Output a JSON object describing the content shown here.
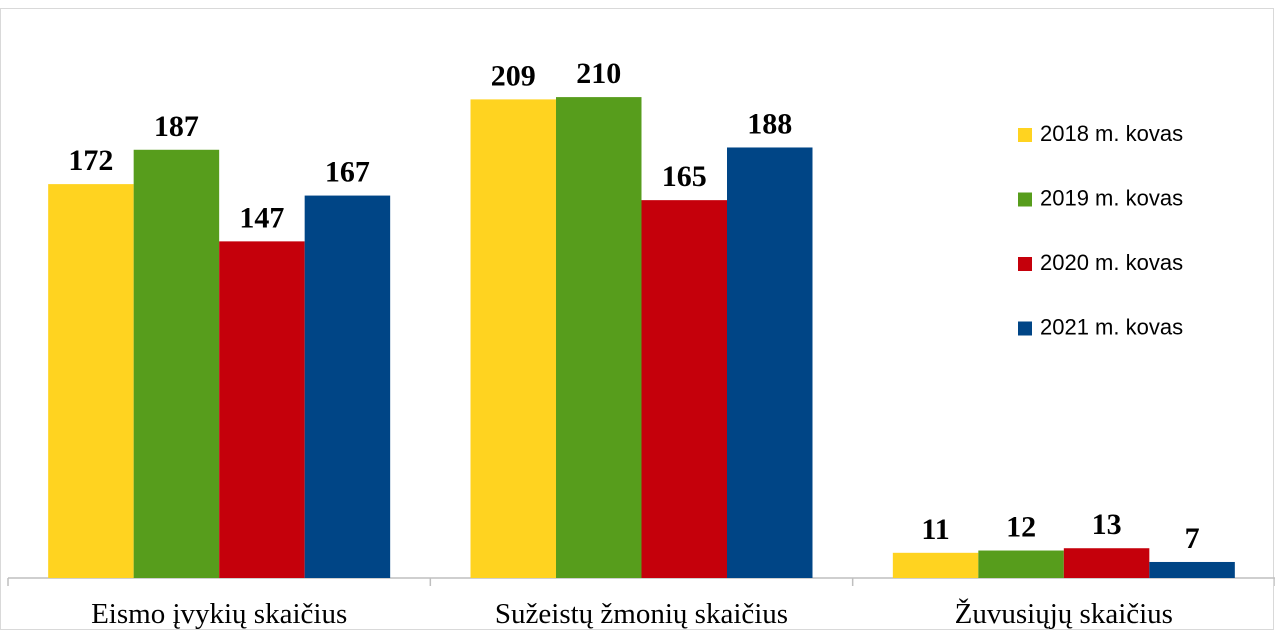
{
  "chart_data": {
    "type": "bar",
    "categories": [
      "Eismo įvykių skaičius",
      "Sužeistų žmonių skaičius",
      "Žuvusiųjų skaičius"
    ],
    "series": [
      {
        "name": "2018 m. kovas",
        "color": "#FFD320",
        "values": [
          172,
          209,
          11
        ]
      },
      {
        "name": "2019 m. kovas",
        "color": "#579D1C",
        "values": [
          187,
          210,
          12
        ]
      },
      {
        "name": "2020 m. kovas",
        "color": "#C5000B",
        "values": [
          147,
          165,
          13
        ]
      },
      {
        "name": "2021 m. kovas",
        "color": "#004586",
        "values": [
          167,
          188,
          7
        ]
      }
    ],
    "ylim": [
      0,
      240
    ],
    "grid": false,
    "legend": "right",
    "data_labels": true
  }
}
